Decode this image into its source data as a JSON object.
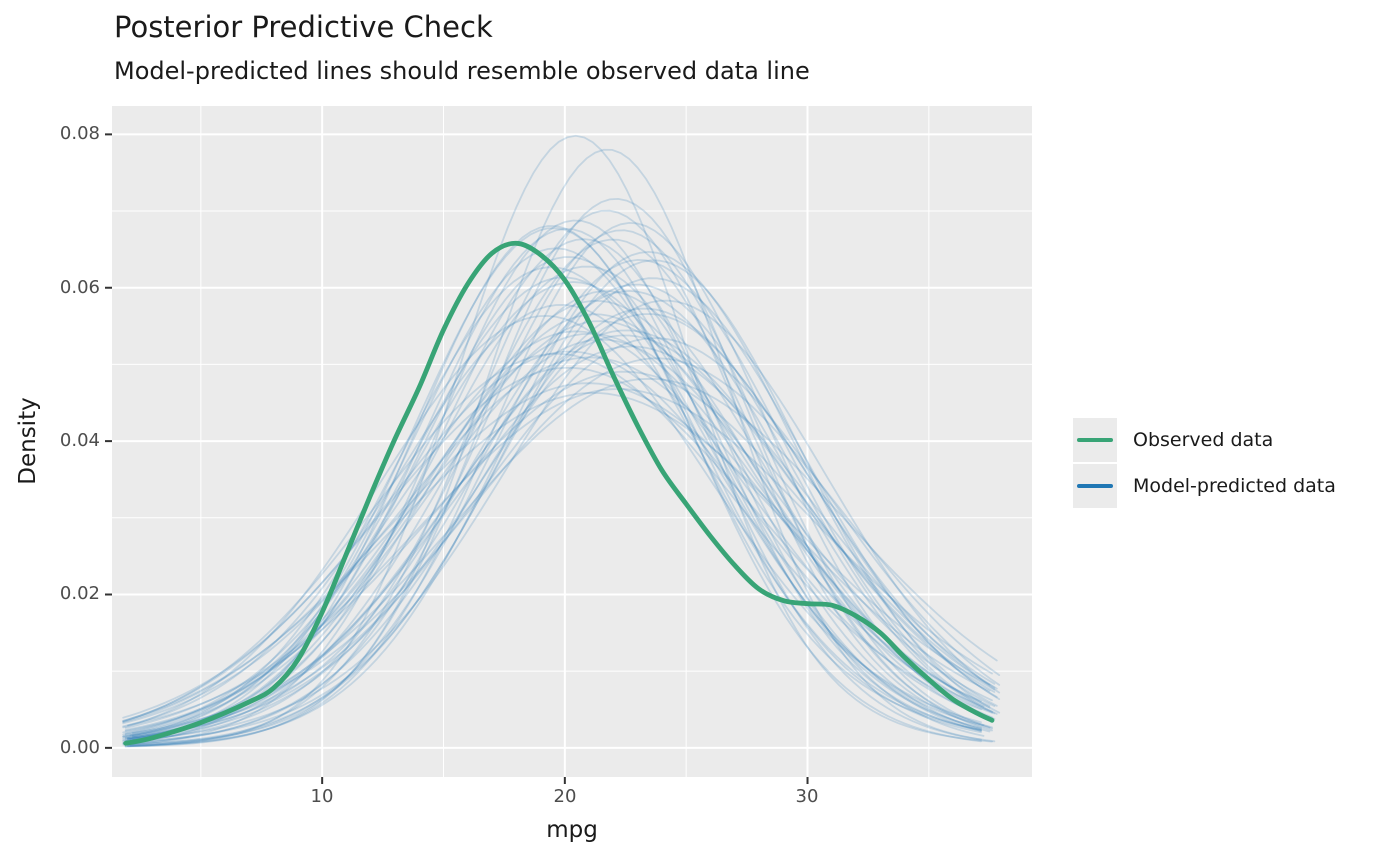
{
  "title": "Posterior Predictive Check",
  "subtitle": "Model-predicted lines should resemble observed data line",
  "x_axis": {
    "label": "mpg",
    "tick_labels": [
      "10",
      "20",
      "30"
    ],
    "tick_values": [
      10,
      20,
      30
    ],
    "minor_ticks": [
      5,
      15,
      25,
      35
    ],
    "range": [
      1.34,
      39.25
    ]
  },
  "y_axis": {
    "label": "Density",
    "tick_labels": [
      "0.00",
      "0.02",
      "0.04",
      "0.06",
      "0.08"
    ],
    "tick_values": [
      0,
      0.02,
      0.04,
      0.06,
      0.08
    ],
    "minor_ticks": [
      0.01,
      0.03,
      0.05,
      0.07
    ],
    "range": [
      -0.0038,
      0.0837
    ]
  },
  "legend": {
    "position": "right",
    "items": [
      {
        "label": "Observed data",
        "color": "#38a476"
      },
      {
        "label": "Model-predicted data",
        "color": "#2077b4"
      }
    ]
  },
  "colors": {
    "panel_background": "#ebebeb",
    "grid": "#ffffff",
    "tick_mark": "#333333",
    "tick_label": "#4d4d4d",
    "text": "#1a1a1a",
    "observed": "#38a476",
    "predicted": "#2077b4",
    "predicted_alpha": 0.19
  },
  "chart_data": {
    "type": "line",
    "title": "Posterior Predictive Check",
    "subtitle": "Model-predicted lines should resemble observed data line",
    "xlabel": "mpg",
    "ylabel": "Density",
    "xlim": [
      1.34,
      39.25
    ],
    "ylim": [
      -0.0038,
      0.0837
    ],
    "grid": "on",
    "legend_position": "right",
    "observed_density": {
      "name": "Observed data",
      "x": [
        1.9,
        3,
        5,
        7,
        8,
        9,
        10,
        11,
        12,
        13,
        14,
        15,
        16,
        17,
        18,
        19,
        20,
        21,
        22,
        23,
        24,
        25,
        26,
        27,
        28,
        29,
        30,
        31,
        32,
        33,
        34,
        35,
        36,
        37,
        37.6
      ],
      "y": [
        0.0006,
        0.0013,
        0.0033,
        0.006,
        0.0078,
        0.0115,
        0.0177,
        0.0253,
        0.033,
        0.0403,
        0.047,
        0.0545,
        0.0605,
        0.0645,
        0.0658,
        0.0643,
        0.061,
        0.0555,
        0.0485,
        0.042,
        0.0362,
        0.0318,
        0.0276,
        0.0238,
        0.0207,
        0.0192,
        0.0188,
        0.0186,
        0.0172,
        0.015,
        0.0118,
        0.0089,
        0.0063,
        0.0045,
        0.0036
      ],
      "peak": {
        "x": 18,
        "y": 0.0658
      }
    },
    "predicted_density_draws": {
      "name": "Model-predicted data",
      "n_draws": 50,
      "curve_model": "y = w*Normal(m1,s1) + (1-w)*Normal(m2,s2)",
      "params_keys": [
        "m1",
        "s1",
        "m2",
        "s2",
        "w",
        "x_start",
        "x_end"
      ],
      "curves": [
        [
          20.4,
          4.8,
          22.0,
          7.8,
          0.9,
          1.9,
          37.6
        ],
        [
          21.8,
          4.9,
          20.0,
          8.2,
          0.9,
          2.0,
          37.9
        ],
        [
          22.4,
          5.6,
          21.0,
          8.5,
          0.85,
          1.8,
          37.5
        ],
        [
          19.2,
          5.4,
          23.0,
          8.0,
          0.8,
          1.8,
          37.3
        ],
        [
          23.1,
          6.2,
          20.5,
          9.0,
          0.82,
          2.1,
          37.9
        ],
        [
          20.1,
          6.8,
          24.0,
          9.5,
          0.78,
          1.9,
          37.4
        ],
        [
          22.9,
          5.9,
          26.0,
          8.8,
          0.84,
          2.0,
          37.9
        ],
        [
          21.2,
          7.4,
          19.0,
          10.0,
          0.8,
          1.8,
          37.8
        ],
        [
          19.8,
          6.1,
          22.5,
          9.2,
          0.83,
          1.9,
          37.3
        ],
        [
          23.6,
          6.6,
          21.0,
          9.6,
          0.81,
          2.2,
          37.9
        ],
        [
          20.9,
          5.7,
          18.5,
          8.4,
          0.85,
          1.9,
          37.5
        ],
        [
          22.2,
          6.9,
          25.5,
          9.8,
          0.79,
          2.0,
          37.8
        ],
        [
          19.4,
          7.2,
          22.0,
          10.2,
          0.77,
          1.8,
          37.3
        ],
        [
          21.5,
          6.3,
          24.5,
          8.9,
          0.82,
          1.9,
          37.7
        ],
        [
          23.9,
          7.0,
          21.5,
          9.9,
          0.8,
          2.2,
          37.9
        ],
        [
          20.3,
          5.5,
          23.5,
          8.1,
          0.86,
          1.8,
          37.4
        ],
        [
          22.7,
          7.6,
          20.0,
          10.5,
          0.78,
          2.0,
          37.8
        ],
        [
          21.0,
          6.0,
          19.0,
          9.0,
          0.84,
          1.8,
          37.6
        ],
        [
          24.3,
          6.4,
          22.0,
          9.4,
          0.81,
          2.2,
          37.9
        ],
        [
          19.0,
          6.6,
          21.5,
          9.7,
          0.8,
          1.8,
          37.2
        ],
        [
          22.0,
          5.3,
          24.8,
          8.0,
          0.87,
          1.9,
          37.8
        ],
        [
          20.7,
          7.8,
          23.0,
          10.8,
          0.76,
          1.8,
          37.5
        ],
        [
          23.3,
          5.8,
          25.8,
          8.6,
          0.83,
          2.1,
          37.9
        ],
        [
          21.7,
          6.7,
          18.8,
          9.3,
          0.79,
          1.9,
          37.7
        ],
        [
          20.0,
          5.9,
          22.8,
          8.7,
          0.85,
          1.8,
          37.3
        ],
        [
          22.5,
          7.1,
          25.0,
          10.0,
          0.78,
          2.0,
          37.9
        ],
        [
          19.6,
          5.6,
          17.5,
          8.3,
          0.86,
          1.8,
          37.2
        ],
        [
          23.0,
          6.5,
          26.5,
          9.1,
          0.8,
          2.1,
          37.9
        ],
        [
          21.3,
          7.0,
          23.8,
          9.9,
          0.79,
          1.9,
          37.6
        ],
        [
          20.5,
          6.2,
          18.0,
          8.9,
          0.83,
          1.8,
          37.4
        ],
        [
          24.0,
          7.3,
          21.8,
          10.3,
          0.77,
          2.2,
          37.9
        ],
        [
          19.3,
          6.0,
          21.8,
          9.0,
          0.84,
          1.8,
          37.2
        ],
        [
          22.1,
          5.7,
          19.8,
          8.5,
          0.85,
          1.9,
          37.8
        ],
        [
          20.8,
          6.9,
          23.5,
          9.7,
          0.79,
          1.8,
          37.5
        ],
        [
          23.5,
          6.1,
          25.5,
          9.2,
          0.82,
          2.1,
          37.9
        ],
        [
          21.6,
          5.4,
          24.0,
          8.2,
          0.86,
          1.9,
          37.7
        ],
        [
          19.9,
          7.5,
          22.3,
          10.4,
          0.77,
          1.8,
          37.3
        ],
        [
          22.8,
          6.3,
          20.5,
          9.1,
          0.82,
          2.0,
          37.9
        ],
        [
          20.2,
          5.6,
          18.2,
          7.9,
          0.84,
          1.8,
          37.4
        ],
        [
          23.2,
          7.7,
          26.0,
          10.6,
          0.76,
          2.1,
          37.9
        ],
        [
          21.1,
          6.4,
          23.9,
          9.3,
          0.81,
          1.9,
          37.6
        ],
        [
          19.5,
          5.8,
          22.0,
          8.6,
          0.85,
          1.8,
          37.2
        ],
        [
          22.3,
          6.8,
          24.8,
          9.8,
          0.78,
          2.0,
          37.9
        ],
        [
          20.4,
          7.2,
          18.0,
          10.1,
          0.78,
          1.8,
          37.5
        ],
        [
          23.8,
          5.9,
          21.5,
          8.8,
          0.83,
          2.2,
          37.9
        ],
        [
          21.9,
          7.9,
          24.5,
          10.9,
          0.75,
          1.9,
          37.8
        ],
        [
          20.0,
          6.5,
          17.8,
          9.4,
          0.82,
          1.8,
          37.3
        ],
        [
          22.6,
          5.5,
          25.2,
          8.4,
          0.85,
          2.0,
          37.9
        ],
        [
          21.4,
          6.6,
          19.2,
          9.5,
          0.8,
          1.9,
          37.6
        ],
        [
          20.9,
          8.0,
          23.2,
          11.0,
          0.75,
          1.8,
          37.5
        ]
      ]
    }
  }
}
